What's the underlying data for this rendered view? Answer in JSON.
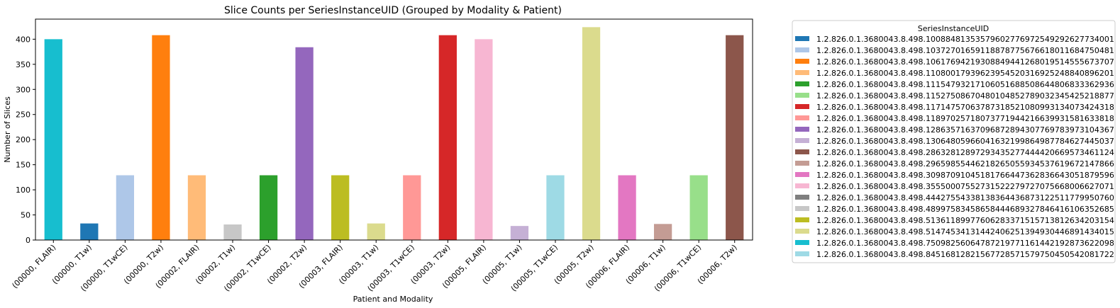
{
  "chart_data": {
    "type": "bar",
    "title": "Slice Counts per SeriesInstanceUID (Grouped by Modality & Patient)",
    "xlabel": "Patient and Modality",
    "ylabel": "Number of Slices",
    "ylim": [
      0,
      440
    ],
    "yticks": [
      0,
      50,
      100,
      150,
      200,
      250,
      300,
      350,
      400
    ],
    "grid": false,
    "legend_title": "SeriesInstanceUID",
    "legend_placement": "outside-right",
    "categories": [
      "(00000, FLAIR)",
      "(00000, T1w)",
      "(00000, T1wCE)",
      "(00000, T2w)",
      "(00002, FLAIR)",
      "(00002, T1w)",
      "(00002, T1wCE)",
      "(00002, T2w)",
      "(00003, FLAIR)",
      "(00003, T1w)",
      "(00003, T1wCE)",
      "(00003, T2w)",
      "(00005, FLAIR)",
      "(00005, T1w)",
      "(00005, T1wCE)",
      "(00005, T2w)",
      "(00006, FLAIR)",
      "(00006, T1w)",
      "(00006, T1wCE)",
      "(00006, T2w)"
    ],
    "bars": [
      {
        "category": "(00000, FLAIR)",
        "value": 400,
        "series": 18
      },
      {
        "category": "(00000, T1w)",
        "value": 33,
        "series": 0
      },
      {
        "category": "(00000, T1wCE)",
        "value": 129,
        "series": 1
      },
      {
        "category": "(00000, T2w)",
        "value": 408,
        "series": 2
      },
      {
        "category": "(00002, FLAIR)",
        "value": 129,
        "series": 3
      },
      {
        "category": "(00002, T1w)",
        "value": 31,
        "series": 15
      },
      {
        "category": "(00002, T1wCE)",
        "value": 129,
        "series": 4
      },
      {
        "category": "(00002, T2w)",
        "value": 384,
        "series": 8
      },
      {
        "category": "(00003, FLAIR)",
        "value": 129,
        "series": 16
      },
      {
        "category": "(00003, T1w)",
        "value": 33,
        "series": 17
      },
      {
        "category": "(00003, T1wCE)",
        "value": 129,
        "series": 7
      },
      {
        "category": "(00003, T2w)",
        "value": 408,
        "series": 6
      },
      {
        "category": "(00005, FLAIR)",
        "value": 400,
        "series": 13
      },
      {
        "category": "(00005, T1w)",
        "value": 28,
        "series": 9
      },
      {
        "category": "(00005, T1wCE)",
        "value": 129,
        "series": 19
      },
      {
        "category": "(00005, T2w)",
        "value": 424,
        "series": 17
      },
      {
        "category": "(00006, FLAIR)",
        "value": 129,
        "series": 12
      },
      {
        "category": "(00006, T1w)",
        "value": 32,
        "series": 11
      },
      {
        "category": "(00006, T1wCE)",
        "value": 129,
        "series": 5
      },
      {
        "category": "(00006, T2w)",
        "value": 408,
        "series": 10
      }
    ],
    "series": [
      {
        "name": "1.2.826.0.1.3680043.8.498.10088481353579602776972549292627734001",
        "color": "#1f77b4"
      },
      {
        "name": "1.2.826.0.1.3680043.8.498.10372701659118878775676618011684750481",
        "color": "#aec7e8"
      },
      {
        "name": "1.2.826.0.1.3680043.8.498.10617694219308849441268019514555673707",
        "color": "#ff7f0e"
      },
      {
        "name": "1.2.826.0.1.3680043.8.498.11080017939623954520316925248840896201",
        "color": "#ffbb78"
      },
      {
        "name": "1.2.826.0.1.3680043.8.498.11154793217106051688508644806833362936",
        "color": "#2ca02c"
      },
      {
        "name": "1.2.826.0.1.3680043.8.498.11527508670480104852789032345425218877",
        "color": "#98df8a"
      },
      {
        "name": "1.2.826.0.1.3680043.8.498.11714757063787318521080993134073424318",
        "color": "#d62728"
      },
      {
        "name": "1.2.826.0.1.3680043.8.498.11897025718073771944216639931581633818",
        "color": "#ff9896"
      },
      {
        "name": "1.2.826.0.1.3680043.8.498.12863571637096872894307769783973104367",
        "color": "#9467bd"
      },
      {
        "name": "1.2.826.0.1.3680043.8.498.13064805966041632199864987784627445037",
        "color": "#c5b0d5"
      },
      {
        "name": "1.2.826.0.1.3680043.8.498.28632812897293435277444420669573461124",
        "color": "#8c564b"
      },
      {
        "name": "1.2.826.0.1.3680043.8.498.29659855446218265055934537619672147866",
        "color": "#c49c94"
      },
      {
        "name": "1.2.826.0.1.3680043.8.498.30987091045181766447362836643051879596",
        "color": "#e377c2"
      },
      {
        "name": "1.2.826.0.1.3680043.8.498.35550007552731522279727075668006627071",
        "color": "#f7b6d2"
      },
      {
        "name": "1.2.826.0.1.3680043.8.498.44427554338138364436873122511779950760",
        "color": "#7f7f7f"
      },
      {
        "name": "1.2.826.0.1.3680043.8.498.48997583458658444689327846416106352685",
        "color": "#c7c7c7"
      },
      {
        "name": "1.2.826.0.1.3680043.8.498.51361189977606283371515713812634203154",
        "color": "#bcbd22"
      },
      {
        "name": "1.2.826.0.1.3680043.8.498.51474534131442406251394930446891434015",
        "color": "#dbdb8d"
      },
      {
        "name": "1.2.826.0.1.3680043.8.498.75098256064787219771161442192873622098",
        "color": "#17becf"
      },
      {
        "name": "1.2.826.0.1.3680043.8.498.84516812821567728571579750450542081722",
        "color": "#9edae5"
      }
    ]
  }
}
